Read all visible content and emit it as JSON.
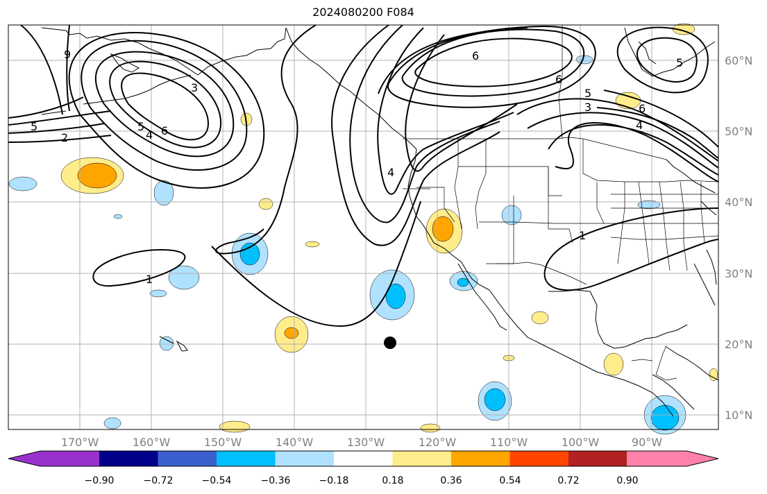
{
  "title": "2024080200 F084",
  "longitude_labels": [
    "170°W",
    "160°W",
    "150°W",
    "140°W",
    "130°W",
    "120°W",
    "110°W",
    "100°W",
    "90°W"
  ],
  "latitude_labels": [
    "60°N",
    "50°N",
    "40°N",
    "30°N",
    "20°N",
    "10°N"
  ],
  "contour_labels": [
    {
      "id": "a",
      "text": "9"
    },
    {
      "id": "b",
      "text": "3"
    },
    {
      "id": "c",
      "text": "5"
    },
    {
      "id": "d",
      "text": "2"
    },
    {
      "id": "e",
      "text": "6"
    },
    {
      "id": "f",
      "text": "4"
    },
    {
      "id": "g",
      "text": "5"
    },
    {
      "id": "h",
      "text": "1"
    },
    {
      "id": "i",
      "text": "4"
    },
    {
      "id": "j",
      "text": "6"
    },
    {
      "id": "k",
      "text": "6"
    },
    {
      "id": "l",
      "text": "5"
    },
    {
      "id": "m",
      "text": "3"
    },
    {
      "id": "n",
      "text": "6"
    },
    {
      "id": "o",
      "text": "4"
    },
    {
      "id": "p",
      "text": "5"
    },
    {
      "id": "q",
      "text": "1"
    }
  ],
  "colorbar": {
    "ticks": [
      "−0.90",
      "−0.72",
      "−0.54",
      "−0.36",
      "−0.18",
      "0.18",
      "0.36",
      "0.54",
      "0.72",
      "0.90"
    ],
    "colors": [
      "#9932cc",
      "#00008b",
      "#3a5fcd",
      "#00bfff",
      "#b0e2ff",
      "#ffffff",
      "#ffec8b",
      "#ffa500",
      "#ff4500",
      "#b22222",
      "#ff82ab"
    ]
  },
  "colors": {
    "pos_light": "#ffec8b",
    "pos_mid": "#ffa500",
    "neg_light": "#b0e2ff",
    "neg_mid": "#00bfff",
    "grid": "#b0b0b0",
    "axis_label": "#808080"
  },
  "marker": {
    "name": "storm-center-marker"
  }
}
